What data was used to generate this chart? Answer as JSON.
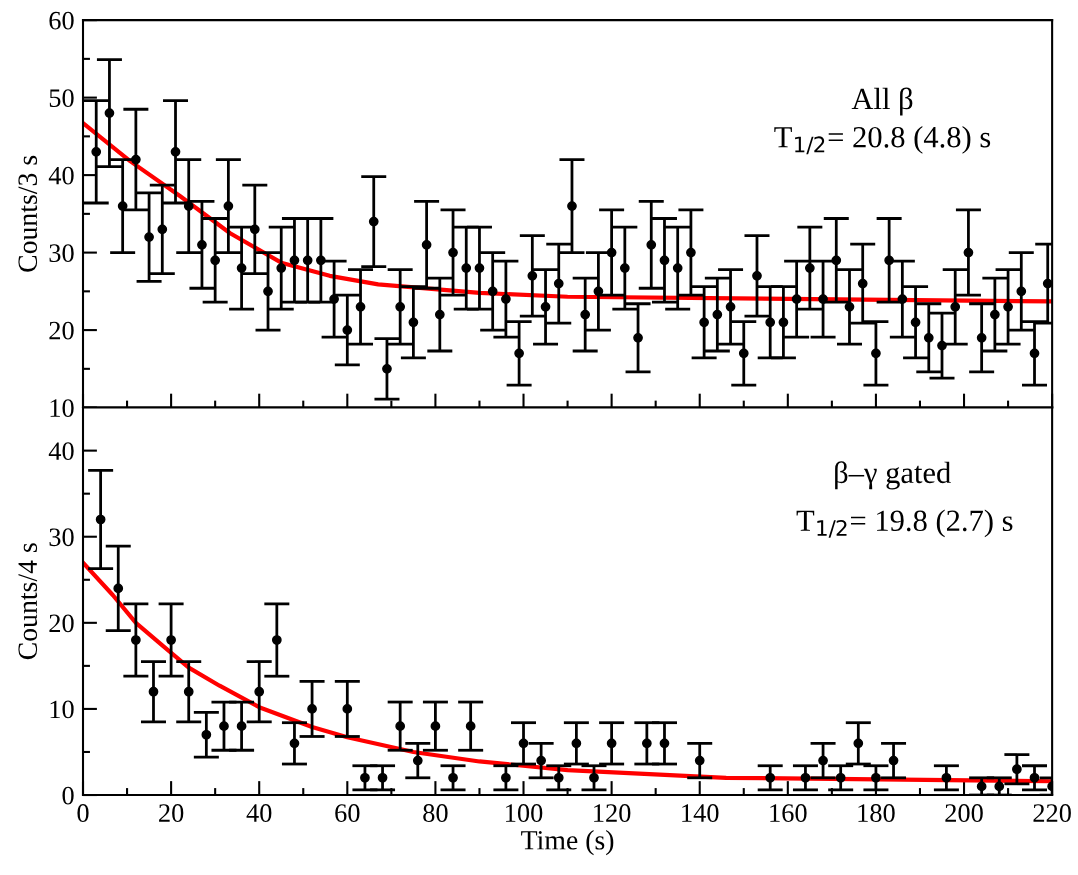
{
  "chart_data": [
    {
      "type": "scatter",
      "ylabel": "Counts/3 s",
      "annotations": [
        "All β",
        "T$_{1/2}$= 20.8 (4.8) s"
      ],
      "xlim": [
        0,
        220
      ],
      "xticks": [
        {
          "value": 50,
          "label": null
        },
        {
          "value": 100,
          "label": null
        },
        {
          "value": 150,
          "label": null
        },
        {
          "value": 200,
          "label": null
        }
      ],
      "ylim": [
        10,
        60
      ],
      "yticks": [
        10,
        {
          "value": 15,
          "label": null
        },
        20,
        {
          "value": 25,
          "label": null
        },
        30,
        {
          "value": 35,
          "label": null
        },
        40,
        {
          "value": 45,
          "label": null
        },
        50,
        {
          "value": 55,
          "label": null
        },
        60
      ],
      "tick_labels": "y",
      "grid": false,
      "legend": false,
      "marker": "circle",
      "series": [
        {
          "color": "#000000",
          "x": [
            3,
            6,
            9,
            12,
            15,
            18,
            21,
            24,
            27,
            30,
            33,
            36,
            39,
            42,
            45,
            48,
            51,
            54,
            57,
            60,
            63,
            66,
            69,
            72,
            75,
            78,
            81,
            84,
            87,
            90,
            93,
            96,
            99,
            102,
            105,
            108,
            111,
            114,
            117,
            120,
            123,
            126,
            129,
            132,
            135,
            138,
            141,
            144,
            147,
            150,
            153,
            156,
            159,
            162,
            165,
            168,
            171,
            174,
            177,
            180,
            183,
            186,
            189,
            192,
            195,
            198,
            201,
            204,
            207,
            210,
            213,
            216,
            219
          ],
          "values": [
            43,
            48,
            36,
            42,
            32,
            33,
            43,
            36,
            31,
            29,
            36,
            28,
            33,
            25,
            28,
            29,
            29,
            29,
            24,
            20,
            23,
            34,
            15,
            23,
            21,
            31,
            22,
            30,
            28,
            28,
            25,
            24,
            17,
            27,
            23,
            26,
            36,
            22,
            25,
            30,
            28,
            19,
            31,
            29,
            28,
            30,
            21,
            22,
            23,
            17,
            27,
            21,
            21,
            24,
            28,
            24,
            29,
            23,
            26,
            17,
            29,
            24,
            21,
            19,
            18,
            23,
            30,
            19,
            22,
            23,
            25,
            17,
            26
          ],
          "errors": [
            6.6,
            6.9,
            6,
            6.5,
            5.7,
            5.7,
            6.6,
            6,
            5.6,
            5.4,
            6,
            5.3,
            5.7,
            5,
            5.3,
            5.4,
            5.4,
            5.4,
            4.9,
            4.5,
            4.8,
            5.8,
            3.9,
            4.8,
            4.6,
            5.6,
            4.7,
            5.5,
            5.3,
            5.3,
            5,
            4.9,
            4.1,
            5.2,
            4.8,
            5.1,
            6,
            4.7,
            5,
            5.5,
            5.3,
            4.4,
            5.6,
            5.4,
            5.3,
            5.5,
            4.6,
            4.7,
            4.8,
            4.1,
            5.2,
            4.6,
            4.6,
            4.9,
            5.3,
            4.9,
            5.4,
            4.8,
            5.1,
            4.1,
            5.4,
            4.9,
            4.6,
            4.4,
            4.2,
            4.8,
            5.5,
            4.4,
            4.7,
            4.8,
            5,
            4.1,
            5.1
          ]
        },
        {
          "type": "line",
          "color": "#ff0000",
          "marker": "none",
          "x": [
            0,
            10.7,
            22,
            33.4,
            45,
            56,
            67,
            90,
            110,
            220
          ],
          "values": [
            46.7,
            41.8,
            37.3,
            32.5,
            28.7,
            27,
            25.9,
            24.8,
            24.3,
            23.7
          ]
        }
      ]
    },
    {
      "type": "scatter",
      "xlabel": "Time (s)",
      "ylabel": "Counts/4 s",
      "annotations": [
        "β–γ gated",
        "T$_{1/2}$= 19.8 (2.7) s"
      ],
      "xlim": [
        0,
        220
      ],
      "xticks": [
        0,
        {
          "value": 10,
          "label": null
        },
        20,
        {
          "value": 30,
          "label": null
        },
        40,
        {
          "value": 50,
          "label": null
        },
        60,
        {
          "value": 70,
          "label": null
        },
        80,
        {
          "value": 90,
          "label": null
        },
        100,
        {
          "value": 110,
          "label": null
        },
        120,
        {
          "value": 130,
          "label": null
        },
        140,
        {
          "value": 150,
          "label": null
        },
        160,
        {
          "value": 170,
          "label": null
        },
        180,
        {
          "value": 190,
          "label": null
        },
        200,
        {
          "value": 210,
          "label": null
        },
        220
      ],
      "ylim": [
        0,
        45
      ],
      "yticks": [
        0,
        {
          "value": 5,
          "label": null
        },
        10,
        {
          "value": 15,
          "label": null
        },
        20,
        {
          "value": 25,
          "label": null
        },
        30,
        {
          "value": 35,
          "label": null
        },
        40
      ],
      "grid": false,
      "legend": false,
      "marker": "circle",
      "series": [
        {
          "color": "#000000",
          "x": [
            4,
            8,
            12,
            16,
            20,
            24,
            28,
            32,
            36,
            40,
            44,
            48,
            52,
            60,
            64,
            68,
            72,
            76,
            80,
            84,
            88,
            96,
            100,
            104,
            108,
            112,
            116,
            120,
            128,
            132,
            140,
            156,
            164,
            168,
            172,
            176,
            180,
            184,
            196,
            204,
            208,
            212,
            216,
            220
          ],
          "values": [
            32,
            24,
            18,
            12,
            18,
            12,
            7,
            8,
            8,
            12,
            18,
            6,
            10,
            10,
            2,
            2,
            8,
            4,
            8,
            2,
            8,
            2,
            6,
            4,
            2,
            6,
            2,
            6,
            6,
            6,
            4,
            2,
            2,
            4,
            2,
            6,
            2,
            4,
            2,
            1,
            1,
            3,
            2,
            1
          ],
          "errors": [
            5.7,
            4.9,
            4.2,
            3.5,
            4.2,
            3.5,
            2.6,
            2.8,
            2.8,
            3.5,
            4.2,
            2.4,
            3.2,
            3.2,
            1.4,
            1.4,
            2.8,
            2,
            2.8,
            1.4,
            2.8,
            1.4,
            2.4,
            2,
            1.4,
            2.4,
            1.4,
            2.4,
            2.4,
            2.4,
            2,
            1.4,
            1.4,
            2,
            1.4,
            2.4,
            1.4,
            2,
            1.4,
            1,
            1,
            1.7,
            1.4,
            1
          ]
        },
        {
          "type": "line",
          "color": "#ff0000",
          "marker": "none",
          "x": [
            0,
            6.8,
            12,
            18.2,
            24,
            31,
            40,
            52,
            60,
            75,
            90,
            110,
            146,
            220
          ],
          "values": [
            27,
            23.2,
            20,
            17.3,
            14.8,
            12.7,
            10.2,
            7.9,
            6.7,
            5,
            3.9,
            2.9,
            2,
            1.6
          ]
        }
      ]
    }
  ]
}
